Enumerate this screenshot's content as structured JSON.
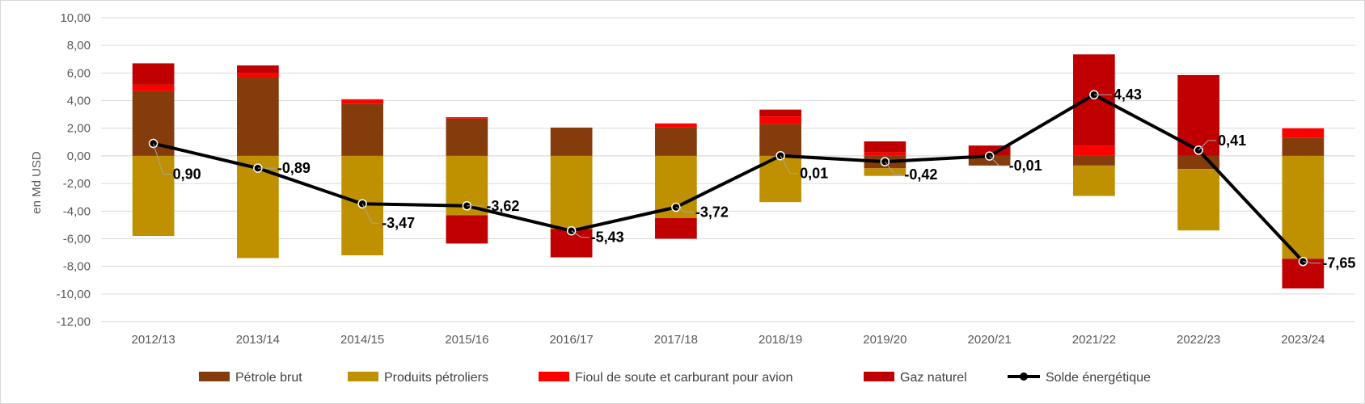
{
  "chart_data": {
    "type": "bar",
    "stacked": true,
    "categories": [
      "2012/13",
      "2013/14",
      "2014/15",
      "2015/16",
      "2016/17",
      "2017/18",
      "2018/19",
      "2019/20",
      "2020/21",
      "2021/22",
      "2022/23",
      "2023/24"
    ],
    "ylabel": "en Md USD",
    "ylim": [
      -12,
      10
    ],
    "yticks": [
      "10,00",
      "8,00",
      "6,00",
      "4,00",
      "2,00",
      "0,00",
      "-2,00",
      "-4,00",
      "-6,00",
      "-8,00",
      "-10,00",
      "-12,00"
    ],
    "grid": true,
    "legend_position": "bottom",
    "series": [
      {
        "name": "Pétrole brut",
        "color": "#843c0c",
        "values": [
          4.7,
          5.7,
          3.75,
          2.7,
          2.05,
          2.05,
          2.3,
          -0.9,
          -0.7,
          -0.7,
          -0.95,
          1.3
        ]
      },
      {
        "name": "Produits pétroliers",
        "color": "#bf9000",
        "values": [
          -5.8,
          -7.4,
          -7.2,
          -4.3,
          -5.3,
          -4.5,
          -3.35,
          -0.55,
          0.0,
          -2.2,
          -4.45,
          -7.45
        ]
      },
      {
        "name": "Fioul de soute et carburant pour avion",
        "color": "#ff0000",
        "values": [
          0.45,
          0.3,
          0.3,
          0.1,
          0.0,
          0.3,
          0.55,
          0.25,
          0.0,
          0.75,
          0.0,
          0.7
        ]
      },
      {
        "name": "Gaz naturel",
        "color": "#c00000",
        "values": [
          1.55,
          0.55,
          0.05,
          -2.05,
          -2.05,
          -1.5,
          0.5,
          0.8,
          0.75,
          6.6,
          5.85,
          -2.15
        ]
      }
    ],
    "line_series": {
      "name": "Solde énergétique",
      "color": "#000000",
      "values": [
        0.9,
        -0.89,
        -3.47,
        -3.62,
        -5.43,
        -3.72,
        0.01,
        -0.42,
        -0.01,
        4.43,
        0.41,
        -7.65
      ],
      "labels": [
        "0,90",
        "-0,89",
        "-3,47",
        "-3,62",
        "-5,43",
        "-3,72",
        "0,01",
        "-0,42",
        "-0,01",
        "4,43",
        "0,41",
        "-7,65"
      ]
    }
  }
}
